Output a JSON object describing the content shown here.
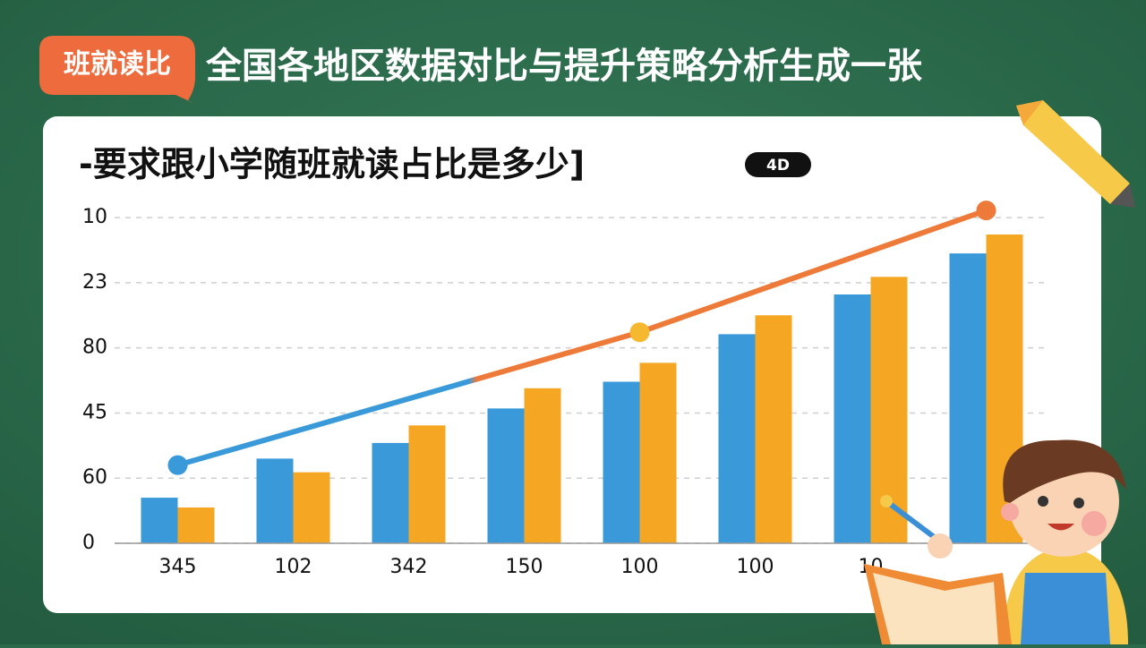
{
  "header": {
    "tag": "班就读比",
    "title": "全国各地区数据对比与提升策略分析生成一张"
  },
  "chart_data": {
    "type": "bar",
    "title": "-要求跟小学随班就读占比是多少]",
    "annotation": "4D",
    "categories": [
      "345",
      "102",
      "342",
      "150",
      "100",
      "100",
      "10",
      null
    ],
    "series": [
      {
        "color": "#3a9ad9",
        "values": [
          0.7,
          1.3,
          1.54,
          2.07,
          2.48,
          3.21,
          3.82,
          4.45
        ]
      },
      {
        "color": "#f5a623",
        "values": [
          0.55,
          1.09,
          1.81,
          2.38,
          2.77,
          3.5,
          4.09,
          4.74
        ]
      },
      {
        "type": "line",
        "color": "#3a9ad9",
        "color2": "#ee7a3a",
        "x": [
          0,
          4,
          7
        ],
        "values": [
          1.2,
          3.24,
          5.11
        ],
        "marker_colors": [
          "#3a9ad9",
          "#f5b82e",
          "#ee7a3a"
        ]
      }
    ],
    "ylim": [
      0,
      5.4
    ],
    "yticks": [
      0,
      {
        "value": 1,
        "label": "60"
      },
      {
        "value": 2,
        "label": "45"
      },
      {
        "value": 3,
        "label": "80"
      },
      {
        "value": 4,
        "label": "23"
      },
      {
        "value": 5,
        "label": "10"
      }
    ],
    "grid": true
  }
}
